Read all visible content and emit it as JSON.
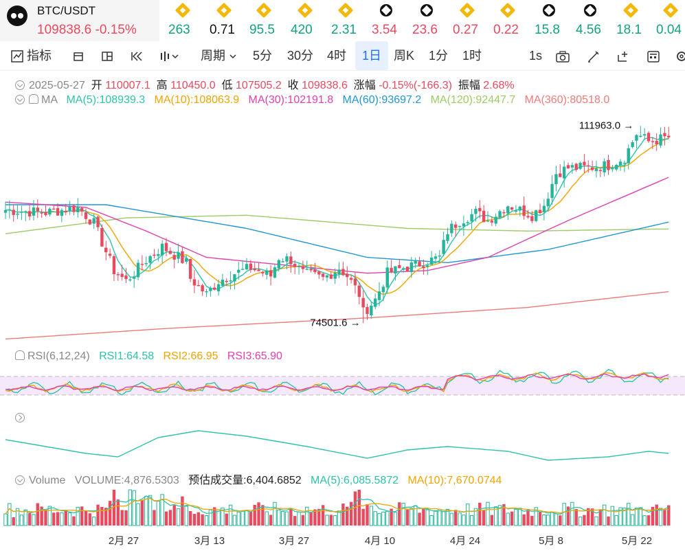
{
  "ticker": {
    "pair": "BTC/USDT",
    "price": "109838.6",
    "change": "-0.15%",
    "items": [
      {
        "icon": "bnb-icon",
        "value": "263",
        "color": "#14a37f"
      },
      {
        "icon": "bnb-icon",
        "value": "0.71",
        "color": "#111111"
      },
      {
        "icon": "bnb-icon",
        "value": "95.5",
        "color": "#14a37f"
      },
      {
        "icon": "bnb-icon",
        "value": "420",
        "color": "#14a37f"
      },
      {
        "icon": "bnb-icon",
        "value": "2.31",
        "color": "#14a37f"
      },
      {
        "icon": "black-coin-icon",
        "value": "3.54",
        "color": "#e84a5f"
      },
      {
        "icon": "black-coin-icon",
        "value": "23.6",
        "color": "#e84a5f"
      },
      {
        "icon": "bnb-icon",
        "value": "0.27",
        "color": "#e84a5f"
      },
      {
        "icon": "bnb-icon",
        "value": "0.22",
        "color": "#e84a5f"
      },
      {
        "icon": "black-coin-icon",
        "value": "15.8",
        "color": "#14a37f"
      },
      {
        "icon": "black-coin-icon",
        "value": "4.56",
        "color": "#14a37f"
      },
      {
        "icon": "bnb-icon",
        "value": "18.1",
        "color": "#14a37f"
      },
      {
        "icon": "bnb-icon",
        "value": "0.04",
        "color": "#14a37f"
      }
    ]
  },
  "toolbar": {
    "indicators": "指标",
    "period": "周期",
    "intervals": [
      "5分",
      "30分",
      "4时",
      "1日",
      "周K",
      "1分",
      "1时"
    ],
    "active_interval": "1日",
    "refresh": "1s"
  },
  "ohlc": {
    "date": "2025-05-27",
    "open_label": "开",
    "open": "110007.1",
    "high_label": "高",
    "high": "110450.0",
    "low_label": "低",
    "low": "107505.2",
    "close_label": "收",
    "close": "109838.6",
    "change_label": "涨幅",
    "change": "-0.15%(-166.3)",
    "amp_label": "振幅",
    "amp": "2.68%"
  },
  "ma": {
    "label": "MA",
    "ma5": "MA(5):108939.3",
    "ma10": "MA(10):108063.9",
    "ma30": "MA(30):102191.8",
    "ma60": "MA(60):93697.2",
    "ma120": "MA(120):92447.7",
    "ma360": "MA(360):80518.0"
  },
  "rsi": {
    "label": "RSI(6,12,24)",
    "rsi1": "RSI1:64.58",
    "rsi2": "RSI2:66.95",
    "rsi3": "RSI3:65.90"
  },
  "volume": {
    "label": "Volume",
    "vol": "VOLUME:4,876.5303",
    "est": "预估成交量:6,404.6852",
    "ma5": "MA(5):6,085.5872",
    "ma10": "MA(10):7,670.0744"
  },
  "chart_data": {
    "type": "candlestick",
    "x_ticks": [
      "2月 27",
      "3月 13",
      "3月 27",
      "4月 10",
      "4月 24",
      "5月 8",
      "5月 22"
    ],
    "annotations": {
      "high": "111963.0",
      "low": "74501.6"
    },
    "high_value": 111963.0,
    "low_value": 74501.6,
    "price_range": [
      70000,
      115000
    ],
    "colors": {
      "up": "#26b49a",
      "down": "#e84a5f"
    }
  }
}
